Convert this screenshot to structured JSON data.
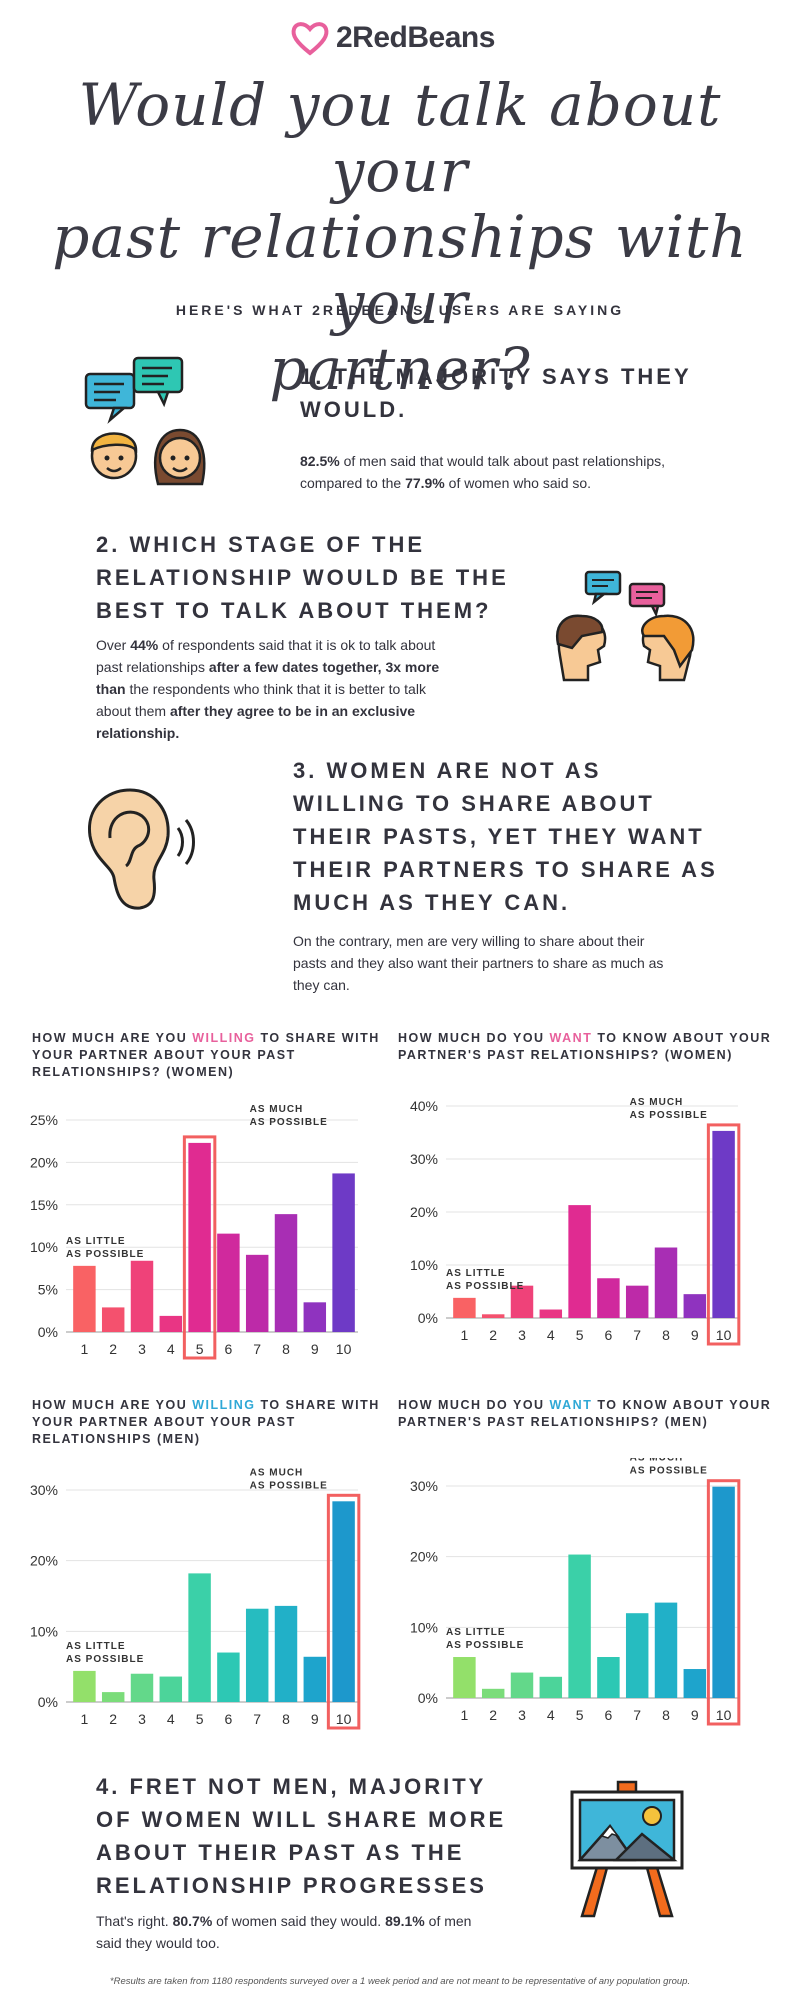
{
  "brand": {
    "name": "2RedBeans",
    "heart_color": "#e8609c"
  },
  "title_lines": [
    "Would you talk about your",
    "past relationships with your",
    "partner?"
  ],
  "subtitle": "HERE'S WHAT 2REDBEANS' USERS ARE SAYING",
  "section1": {
    "heading_lines": [
      "1. THE MAJORITY SAYS THEY",
      "WOULD."
    ],
    "men_pct": "82.5%",
    "text_a": " of men said that would talk about past relationships,",
    "text_b": "compared to the ",
    "women_pct": "77.9%",
    "text_c": " of women who said so."
  },
  "section2": {
    "heading_lines": [
      "2. WHICH STAGE OF THE",
      "RELATIONSHIP WOULD BE THE",
      "BEST TO TALK ABOUT THEM?"
    ],
    "p1": "Over ",
    "pct": "44%",
    "p2": " of respondents said that it is ok to talk about",
    "p3": "past relationships ",
    "b1": "after a few dates together, 3x more",
    "b2": "than",
    "p4": " the respondents who think that it is better to talk",
    "p5": "about them ",
    "b3": "after they agree to be in an exclusive",
    "b4": "relationship."
  },
  "section3": {
    "heading_lines": [
      "3. WOMEN ARE NOT AS",
      "WILLING TO SHARE ABOUT",
      "THEIR PASTS, YET THEY WANT",
      "THEIR PARTNERS TO SHARE AS",
      "MUCH AS THEY CAN."
    ],
    "para_lines": [
      "On the contrary, men are very willing to share about their",
      "pasts and they also want their partners to share as much as",
      "they can."
    ]
  },
  "section4": {
    "heading_lines": [
      "4. FRET NOT MEN, MAJORITY",
      "OF WOMEN WILL SHARE MORE",
      "ABOUT THEIR PAST AS THE",
      "RELATIONSHIP PROGRESSES"
    ],
    "p1": "That's right. ",
    "women_pct": "80.7%",
    "p2": " of women said they would. ",
    "men_pct": "89.1%",
    "p3": " of men",
    "p4": "said they would too."
  },
  "footnote": "*Results are taken from 1180 respondents surveyed over a 1 week period and are not meant to be representative of any population group.",
  "chart_data": [
    {
      "type": "bar",
      "title_a": "HOW MUCH ARE YOU ",
      "title_hl": "WILLING",
      "title_b": " TO SHARE WITH",
      "title_line2": "YOUR PARTNER ABOUT YOUR PAST",
      "title_line3": "RELATIONSHIPS? (WOMEN)",
      "highlight_color": "#e8609c",
      "categories": [
        "1",
        "2",
        "3",
        "4",
        "5",
        "6",
        "7",
        "8",
        "9",
        "10"
      ],
      "values": [
        7.8,
        2.9,
        8.4,
        1.9,
        22.3,
        11.6,
        9.1,
        13.9,
        3.5,
        18.7
      ],
      "ylim": [
        0,
        25
      ],
      "yticks": [
        "0%",
        "5%",
        "10%",
        "15%",
        "20%",
        "25%"
      ],
      "colors": [
        "#f96264",
        "#f4516e",
        "#ef4279",
        "#e93584",
        "#e02b91",
        "#d0299d",
        "#bd2aa8",
        "#a82eb4",
        "#8f33bf",
        "#6e3ac6"
      ],
      "boxed_index": 4,
      "label_low": [
        "AS LITTLE",
        "AS POSSIBLE"
      ],
      "label_high": [
        "AS MUCH",
        "AS POSSIBLE"
      ]
    },
    {
      "type": "bar",
      "title_a": "HOW MUCH DO YOU ",
      "title_hl": "WANT",
      "title_b": " TO KNOW ABOUT YOUR",
      "title_line2": "PARTNER'S PAST RELATIONSHIPS? (WOMEN)",
      "title_line3": "",
      "highlight_color": "#e8609c",
      "categories": [
        "1",
        "2",
        "3",
        "4",
        "5",
        "6",
        "7",
        "8",
        "9",
        "10"
      ],
      "values": [
        3.8,
        0.7,
        6.1,
        1.6,
        21.3,
        7.5,
        6.1,
        13.3,
        4.5,
        35.3
      ],
      "ylim": [
        0,
        40
      ],
      "yticks": [
        "0%",
        "10%",
        "20%",
        "30%",
        "40%"
      ],
      "colors": [
        "#f96264",
        "#f4516e",
        "#ef4279",
        "#e93584",
        "#e02b91",
        "#d0299d",
        "#bd2aa8",
        "#a82eb4",
        "#8f33bf",
        "#6e3ac6"
      ],
      "boxed_index": 9,
      "label_low": [
        "AS LITTLE",
        "AS POSSIBLE"
      ],
      "label_high": [
        "AS MUCH",
        "AS POSSIBLE"
      ]
    },
    {
      "type": "bar",
      "title_a": "HOW MUCH ARE YOU ",
      "title_hl": "WILLING",
      "title_b": " TO SHARE WITH",
      "title_line2": "YOUR PARTNER ABOUT YOUR PAST",
      "title_line3": "RELATIONSHIPS (MEN)",
      "highlight_color": "#2fa8d6",
      "categories": [
        "1",
        "2",
        "3",
        "4",
        "5",
        "6",
        "7",
        "8",
        "9",
        "10"
      ],
      "values": [
        4.4,
        1.4,
        4.0,
        3.6,
        18.2,
        7.0,
        13.2,
        13.6,
        6.4,
        28.4
      ],
      "ylim": [
        0,
        30
      ],
      "yticks": [
        "0%",
        "10%",
        "20%",
        "30%"
      ],
      "colors": [
        "#93e06a",
        "#7bdc7a",
        "#63d88a",
        "#4cd49a",
        "#3bd0a8",
        "#2dc8b4",
        "#26bcc0",
        "#21b0c8",
        "#1ea4cc",
        "#1d98cc"
      ],
      "boxed_index": 9,
      "label_low": [
        "AS LITTLE",
        "AS POSSIBLE"
      ],
      "label_high": [
        "AS MUCH",
        "AS POSSIBLE"
      ]
    },
    {
      "type": "bar",
      "title_a": "HOW MUCH DO YOU ",
      "title_hl": "WANT",
      "title_b": " TO KNOW ABOUT YOUR",
      "title_line2": "PARTNER'S PAST RELATIONSHIPS? (MEN)",
      "title_line3": "",
      "highlight_color": "#2fa8d6",
      "categories": [
        "1",
        "2",
        "3",
        "4",
        "5",
        "6",
        "7",
        "8",
        "9",
        "10"
      ],
      "values": [
        5.8,
        1.3,
        3.6,
        3.0,
        20.3,
        5.8,
        12.0,
        13.5,
        4.1,
        29.9
      ],
      "ylim": [
        0,
        30
      ],
      "yticks": [
        "0%",
        "10%",
        "20%",
        "30%"
      ],
      "colors": [
        "#93e06a",
        "#7bdc7a",
        "#63d88a",
        "#4cd49a",
        "#3bd0a8",
        "#2dc8b4",
        "#26bcc0",
        "#21b0c8",
        "#1ea4cc",
        "#1d98cc"
      ],
      "boxed_index": 9,
      "label_low": [
        "AS LITTLE",
        "AS POSSIBLE"
      ],
      "label_high": [
        "AS MUCH",
        "AS POSSIBLE"
      ]
    }
  ]
}
